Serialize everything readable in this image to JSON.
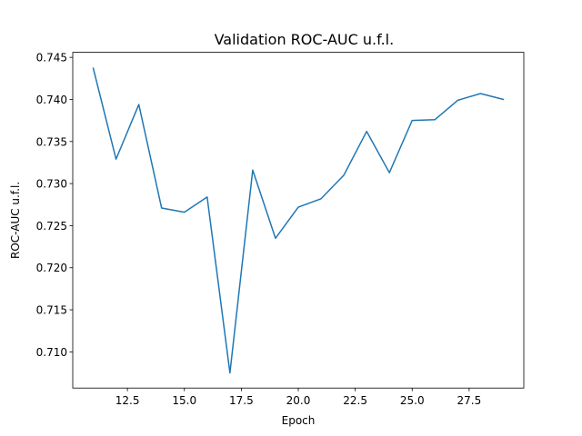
{
  "chart_data": {
    "type": "line",
    "title": "Validation ROC-AUC u.f.l.",
    "xlabel": "Epoch",
    "ylabel": "ROC-AUC u.f.l.",
    "xlim": [
      10.1,
      29.9
    ],
    "ylim": [
      0.7057,
      0.7456
    ],
    "xticks": [
      12.5,
      15.0,
      17.5,
      20.0,
      22.5,
      25.0,
      27.5
    ],
    "xtick_labels": [
      "12.5",
      "15.0",
      "17.5",
      "20.0",
      "22.5",
      "25.0",
      "27.5"
    ],
    "yticks": [
      0.71,
      0.715,
      0.72,
      0.725,
      0.73,
      0.735,
      0.74,
      0.745
    ],
    "ytick_labels": [
      "0.710",
      "0.715",
      "0.720",
      "0.725",
      "0.730",
      "0.735",
      "0.740",
      "0.745"
    ],
    "grid": false,
    "series": [
      {
        "color": "#1f77b4",
        "x": [
          11,
          12,
          13,
          14,
          15,
          16,
          17,
          18,
          19,
          20,
          21,
          22,
          23,
          24,
          25,
          26,
          27,
          28,
          29
        ],
        "y": [
          0.7437,
          0.7329,
          0.7394,
          0.7271,
          0.7266,
          0.7284,
          0.7075,
          0.7316,
          0.7235,
          0.7272,
          0.7282,
          0.731,
          0.7362,
          0.7313,
          0.7375,
          0.7376,
          0.7399,
          0.7407,
          0.74
        ]
      }
    ]
  }
}
